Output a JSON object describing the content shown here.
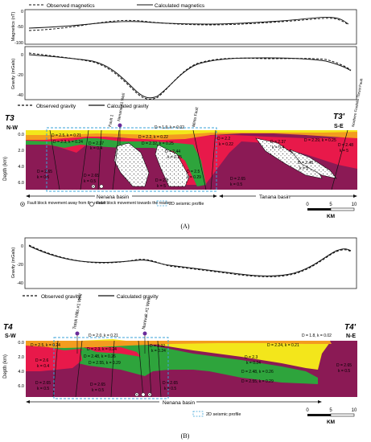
{
  "panelA": {
    "magLegend": {
      "observed": "Observed magnetics",
      "calculated": "Calculated magnetics"
    },
    "magAxis": {
      "label": "Magnetics (nT)",
      "ticks": [
        "0",
        "-50",
        "-100"
      ]
    },
    "gravAxis": {
      "label": "Gravity (mGals)",
      "ticks": [
        "0",
        "-20",
        "-40"
      ]
    },
    "gravLegend": {
      "observed": "Observed gravity",
      "calculated": "Calculated gravity"
    },
    "sectionStart": {
      "name": "T3",
      "dir": "N-W"
    },
    "sectionEnd": {
      "name": "T3'",
      "dir": "S-E"
    },
    "depthAxis": {
      "label": "Depth (km)",
      "ticks": [
        "0.0",
        "2.0",
        "4.0",
        "6.0"
      ]
    },
    "wellLabels": [
      "Fault 1",
      "Nenana #1 Well",
      "Minto Fault",
      "Northern Foothills Thrust Fault"
    ],
    "bodyLabels": [
      {
        "d": "D = 2.5, k = 0.21"
      },
      {
        "d": "D = 2.3, k = 0.24"
      },
      {
        "d": "D = 2.37",
        "k": "k = 0.4"
      },
      {
        "d": "D = 1.9, k = 0.02"
      },
      {
        "d": "D = 2.2, k = 0.22"
      },
      {
        "d": "D = 2.32, k = 0.25"
      },
      {
        "d": "D = 2.44",
        "k": "k = 0.25"
      },
      {
        "d": "D = 2.2",
        "k": "k = 0.22"
      },
      {
        "d": "D = 2.65",
        "k": "k = 0.5"
      },
      {
        "d": "D = 2.65",
        "k": "k = 0.5"
      },
      {
        "d": "D = 2.8",
        "k": "k = 5"
      },
      {
        "d": "D = 2.5",
        "k": "k = 0.29"
      },
      {
        "d": "D = 2.65",
        "k": "k = 0.5"
      },
      {
        "d": "D = 2.37",
        "k": "k = 0.4"
      },
      {
        "d": "D = 2.29, k = 0.25"
      },
      {
        "d": "D = 2.48",
        "k": "k = 5"
      },
      {
        "d": "D = 2.48",
        "k": "k = 5"
      }
    ],
    "basins": [
      "Nenana basin",
      "Tanana basin"
    ],
    "legend": {
      "away": "Fault block movement away from the reader",
      "towards": "Fault block movement towards the reader",
      "seismic": "2D seismic profile"
    },
    "scale": {
      "ticks": [
        "0",
        "5",
        "10"
      ],
      "unit": "KM"
    },
    "caption": "(A)"
  },
  "panelB": {
    "gravAxis": {
      "label": "Gravity (mGals)",
      "ticks": [
        "0",
        "-20",
        "-40"
      ]
    },
    "gravLegend": {
      "observed": "Observed gravity",
      "calculated": "Calculated gravity"
    },
    "sectionStart": {
      "name": "T4",
      "dir": "S-W"
    },
    "sectionEnd": {
      "name": "T4'",
      "dir": "N-E"
    },
    "depthAxis": {
      "label": "Depth (km)",
      "ticks": [
        "0.0",
        "2.0",
        "4.0",
        "6.0"
      ]
    },
    "wellLabels": [
      "Totek Hills #1 Well",
      "Nunivak #1 Well"
    ],
    "bodyLabels": [
      {
        "d": "D = 2.0, k = 0.21"
      },
      {
        "d": "D = 1.8, k = 0.02"
      },
      {
        "d": "D = 2.5, k = 0.24"
      },
      {
        "d": "D = 2.3, k = 0.24"
      },
      {
        "d": "D = 2.32",
        "k": "k = 0.24"
      },
      {
        "d": "D = 2.24, k = 0.21"
      },
      {
        "d": "D = 2.48, k = 0.26"
      },
      {
        "d": "D = 2.55, k = 0.29"
      },
      {
        "d": "D = 2.6",
        "k": "k = 0.4"
      },
      {
        "d": "D = 2.3",
        "k": "k = 0.24"
      },
      {
        "d": "D = 2.48, k = 0.26"
      },
      {
        "d": "D = 2.55, k = 0.29"
      },
      {
        "d": "D = 2.65",
        "k": "k = 0.5"
      },
      {
        "d": "D = 2.65",
        "k": "k = 0.5"
      },
      {
        "d": "D = 2.65",
        "k": "k = 0.5"
      },
      {
        "d": "D = 2.65",
        "k": "k = 0.5"
      }
    ],
    "basins": [
      "Nenana basin"
    ],
    "legend": {
      "seismic": "2D seismic profile"
    },
    "scale": {
      "ticks": [
        "0",
        "5",
        "10"
      ],
      "unit": "KM"
    },
    "caption": "(B)"
  },
  "colors": {
    "basement": "#8b1a55",
    "red": "#e8194a",
    "orange": "#f39c1f",
    "yellow": "#f3e61b",
    "green": "#2ea43c",
    "seismic": "#3aa3d8"
  }
}
